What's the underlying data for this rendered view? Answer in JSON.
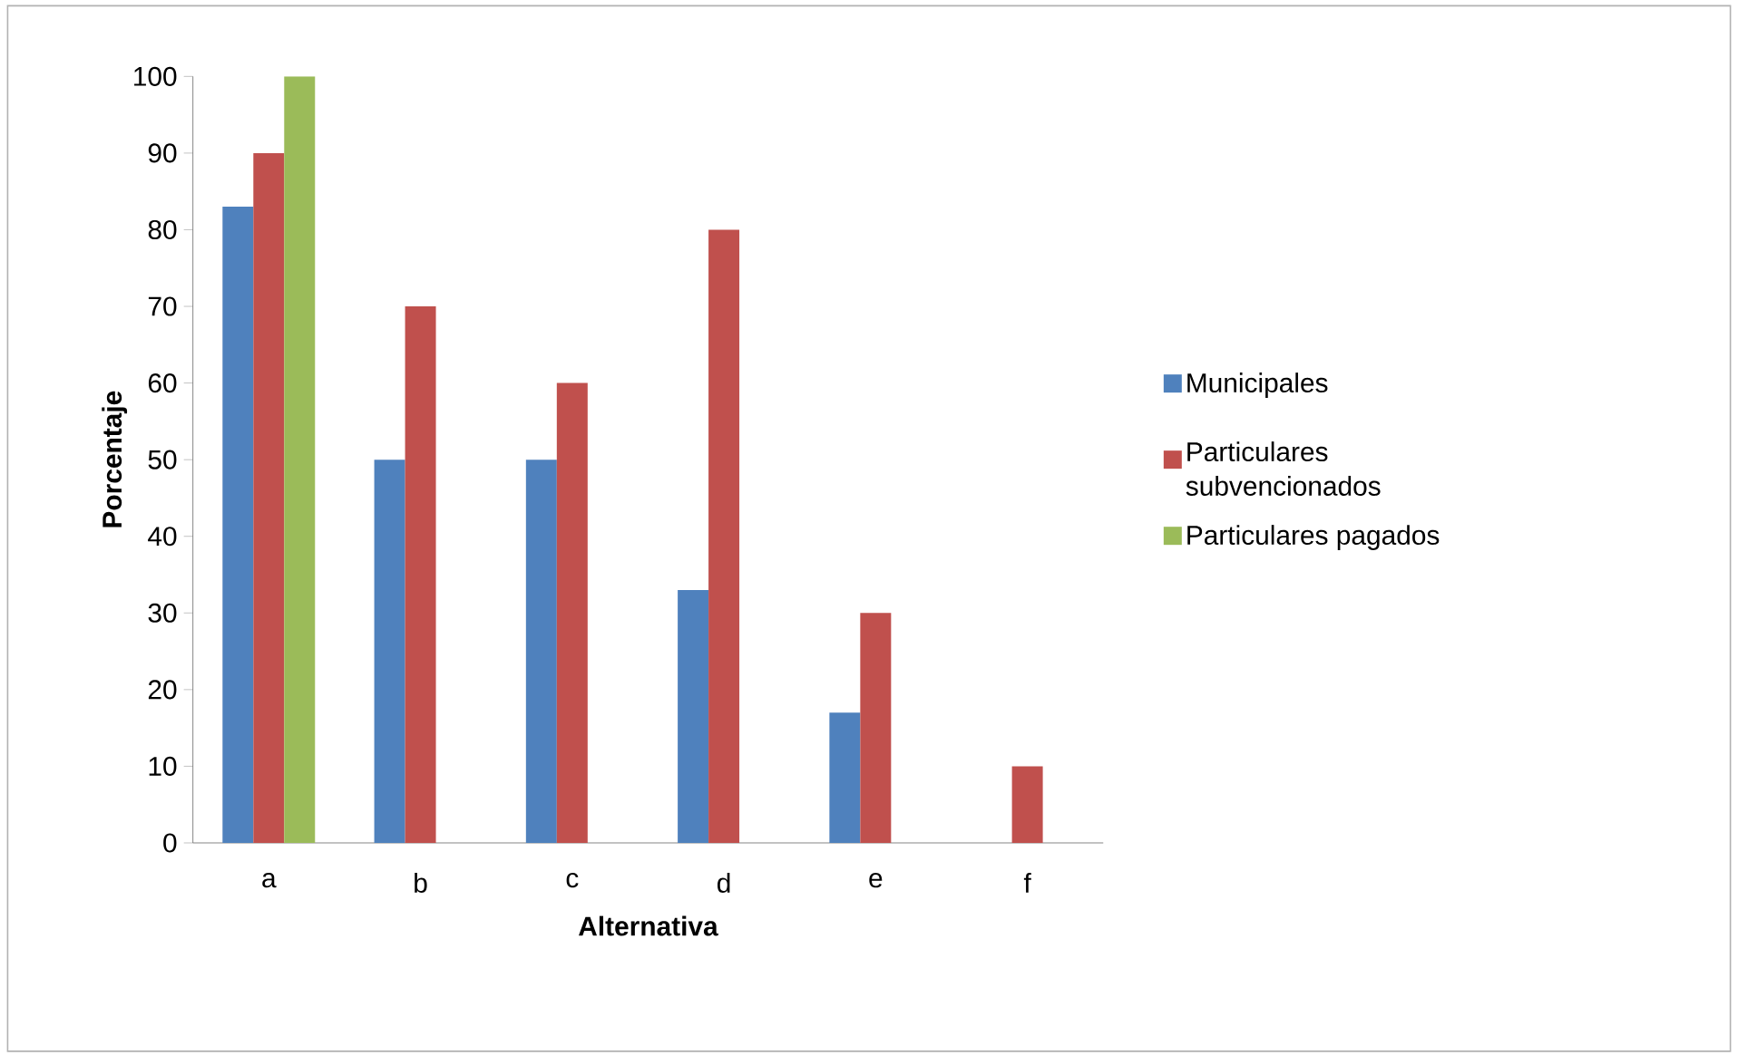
{
  "chart_data": {
    "type": "bar",
    "xlabel": "Alternativa",
    "ylabel": "Porcentaje",
    "categories": [
      "a",
      "b",
      "c",
      "d",
      "e",
      "f"
    ],
    "series": [
      {
        "name": "Municipales",
        "color": "#4f81bd",
        "values": [
          83,
          50,
          50,
          33,
          17,
          0
        ]
      },
      {
        "name": "Particulares subvencionados",
        "color": "#c0504d",
        "values": [
          90,
          70,
          60,
          80,
          30,
          10
        ]
      },
      {
        "name": "Particulares pagados",
        "color": "#9bbb59",
        "values": [
          100,
          0,
          0,
          0,
          0,
          0
        ]
      }
    ],
    "ylim": [
      0,
      100
    ],
    "yticks": [
      0,
      10,
      20,
      30,
      40,
      50,
      60,
      70,
      80,
      90,
      100
    ],
    "legend": "right"
  }
}
